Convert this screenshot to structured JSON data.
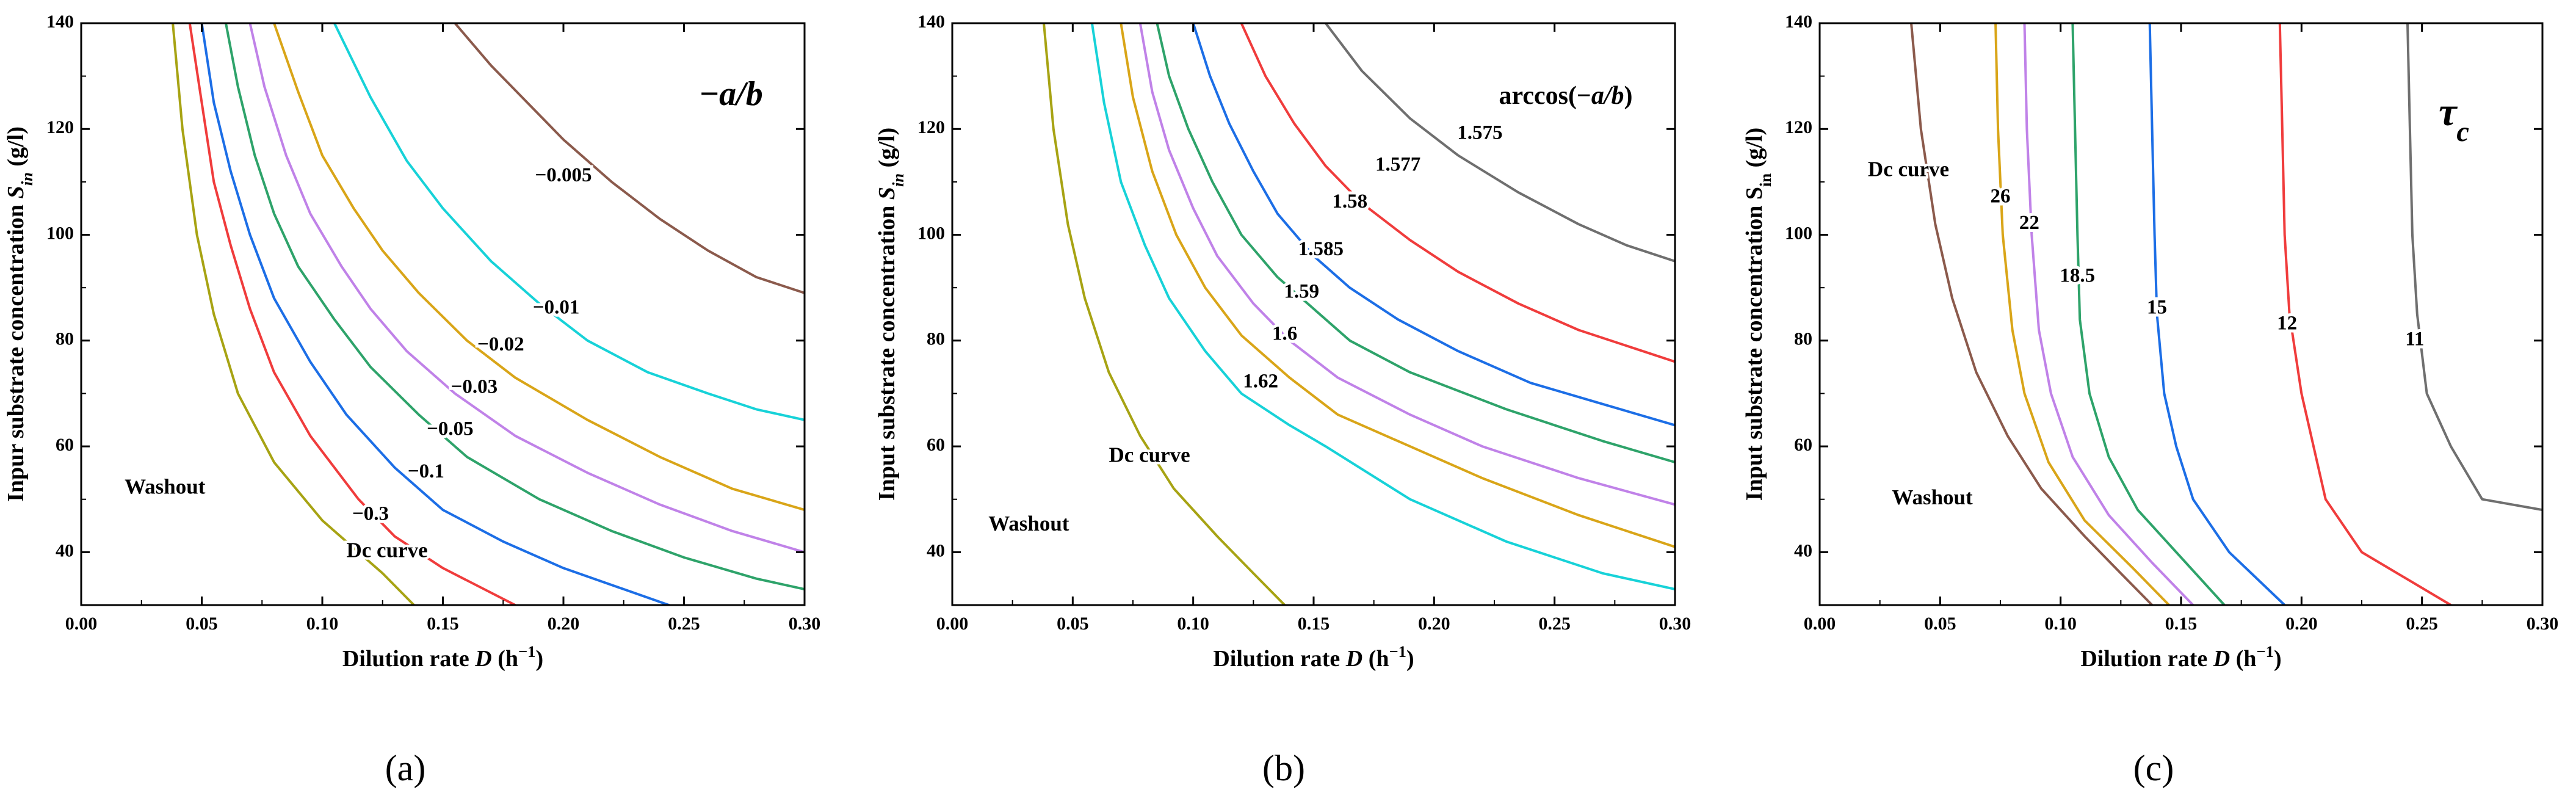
{
  "colors": {
    "olive": "#a7a313",
    "brown": "#8b5a4c",
    "red": "#f03c3c",
    "blue": "#1c6ee6",
    "green": "#2ea36a",
    "purple": "#c082e8",
    "gold": "#d9a518",
    "cyan": "#17d2d8",
    "gray": "#6f6f6f"
  },
  "chart_data": [
    {
      "type": "line",
      "subtype": "contour",
      "title": "−a/b",
      "xlabel": "Dilution rate D (h⁻¹)",
      "ylabel": "Inpur substrate concentration S_in (g/l)",
      "xlim": [
        0,
        0.3
      ],
      "ylim": [
        30,
        140
      ],
      "xticks": [
        "0.00",
        "0.05",
        "0.10",
        "0.15",
        "0.20",
        "0.25",
        "0.30"
      ],
      "yticks": [
        "40",
        "60",
        "80",
        "100",
        "120",
        "140"
      ],
      "caption": "(a)",
      "annotations": [
        {
          "text": "Washout",
          "x": 0.018,
          "y": 52
        },
        {
          "text": "Dc curve",
          "x": 0.11,
          "y": 40
        }
      ],
      "series": [
        {
          "name": "Dc curve",
          "color": "olive",
          "x": [
            0.038,
            0.042,
            0.048,
            0.055,
            0.065,
            0.08,
            0.1,
            0.125,
            0.138
          ],
          "y": [
            140,
            120,
            100,
            85,
            70,
            57,
            46,
            36,
            30
          ]
        },
        {
          "name": "−0.3",
          "color": "red",
          "x": [
            0.045,
            0.05,
            0.055,
            0.062,
            0.07,
            0.08,
            0.095,
            0.115,
            0.13,
            0.15,
            0.18
          ],
          "y": [
            140,
            125,
            110,
            98,
            86,
            74,
            62,
            50,
            43,
            37,
            30
          ]
        },
        {
          "name": "−0.1",
          "color": "blue",
          "x": [
            0.05,
            0.055,
            0.062,
            0.07,
            0.08,
            0.095,
            0.11,
            0.13,
            0.15,
            0.175,
            0.2,
            0.225,
            0.25
          ],
          "y": [
            140,
            125,
            112,
            100,
            88,
            76,
            66,
            56,
            48,
            42,
            37,
            33,
            29
          ]
        },
        {
          "name": "−0.05",
          "color": "green",
          "x": [
            0.06,
            0.065,
            0.072,
            0.08,
            0.09,
            0.105,
            0.12,
            0.14,
            0.16,
            0.19,
            0.22,
            0.25,
            0.28,
            0.3
          ],
          "y": [
            140,
            128,
            115,
            104,
            94,
            84,
            75,
            66,
            58,
            50,
            44,
            39,
            35,
            33
          ]
        },
        {
          "name": "−0.03",
          "color": "purple",
          "x": [
            0.07,
            0.076,
            0.085,
            0.095,
            0.108,
            0.12,
            0.135,
            0.155,
            0.18,
            0.21,
            0.24,
            0.27,
            0.3
          ],
          "y": [
            140,
            128,
            115,
            104,
            94,
            86,
            78,
            70,
            62,
            55,
            49,
            44,
            40
          ]
        },
        {
          "name": "−0.02",
          "color": "gold",
          "x": [
            0.08,
            0.09,
            0.1,
            0.113,
            0.125,
            0.14,
            0.16,
            0.18,
            0.21,
            0.24,
            0.27,
            0.3
          ],
          "y": [
            140,
            127,
            115,
            105,
            97,
            89,
            80,
            73,
            65,
            58,
            52,
            48
          ]
        },
        {
          "name": "−0.01",
          "color": "cyan",
          "x": [
            0.105,
            0.12,
            0.135,
            0.15,
            0.17,
            0.19,
            0.21,
            0.235,
            0.26,
            0.28,
            0.3
          ],
          "y": [
            140,
            126,
            114,
            105,
            95,
            87,
            80,
            74,
            70,
            67,
            65
          ]
        },
        {
          "name": "−0.005",
          "color": "brown",
          "x": [
            0.155,
            0.17,
            0.185,
            0.2,
            0.22,
            0.24,
            0.26,
            0.28,
            0.3
          ],
          "y": [
            140,
            132,
            125,
            118,
            110,
            103,
            97,
            92,
            89
          ]
        }
      ],
      "contour_labels": [
        {
          "text": "−0.3",
          "x": 0.12,
          "y": 47
        },
        {
          "text": "−0.1",
          "x": 0.143,
          "y": 55
        },
        {
          "text": "−0.05",
          "x": 0.153,
          "y": 63
        },
        {
          "text": "−0.03",
          "x": 0.163,
          "y": 71
        },
        {
          "text": "−0.02",
          "x": 0.174,
          "y": 79
        },
        {
          "text": "−0.01",
          "x": 0.197,
          "y": 86
        },
        {
          "text": "−0.005",
          "x": 0.2,
          "y": 111
        }
      ]
    },
    {
      "type": "line",
      "subtype": "contour",
      "title": "arccos(−a/b)",
      "xlabel": "Dilution rate D (h⁻¹)",
      "ylabel": "Input substrate concentration S_in (g/l)",
      "xlim": [
        0,
        0.3
      ],
      "ylim": [
        30,
        140
      ],
      "xticks": [
        "0.00",
        "0.05",
        "0.10",
        "0.15",
        "0.20",
        "0.25",
        "0.30"
      ],
      "yticks": [
        "40",
        "60",
        "80",
        "100",
        "120",
        "140"
      ],
      "caption": "(b)",
      "annotations": [
        {
          "text": "Washout",
          "x": 0.015,
          "y": 45
        },
        {
          "text": "Dc curve",
          "x": 0.065,
          "y": 58
        }
      ],
      "series": [
        {
          "name": "Dc curve",
          "color": "olive",
          "x": [
            0.038,
            0.042,
            0.048,
            0.055,
            0.065,
            0.078,
            0.092,
            0.11,
            0.125,
            0.138
          ],
          "y": [
            140,
            120,
            102,
            88,
            74,
            62,
            52,
            43,
            36,
            30
          ]
        },
        {
          "name": "1.62",
          "color": "cyan",
          "x": [
            0.058,
            0.063,
            0.07,
            0.08,
            0.09,
            0.105,
            0.12,
            0.14,
            0.155,
            0.19,
            0.23,
            0.27,
            0.3
          ],
          "y": [
            140,
            125,
            110,
            98,
            88,
            78,
            70,
            64,
            60,
            50,
            42,
            36,
            33
          ]
        },
        {
          "name": "1.6",
          "color": "gold",
          "x": [
            0.07,
            0.075,
            0.083,
            0.093,
            0.105,
            0.12,
            0.14,
            0.16,
            0.19,
            0.22,
            0.26,
            0.3
          ],
          "y": [
            140,
            126,
            112,
            100,
            90,
            81,
            73,
            66,
            60,
            54,
            47,
            41
          ]
        },
        {
          "name": "1.59",
          "color": "purple",
          "x": [
            0.078,
            0.083,
            0.09,
            0.1,
            0.11,
            0.125,
            0.14,
            0.16,
            0.19,
            0.22,
            0.26,
            0.3
          ],
          "y": [
            140,
            127,
            116,
            105,
            96,
            87,
            80,
            73,
            66,
            60,
            54,
            49
          ]
        },
        {
          "name": "1.585",
          "color": "green",
          "x": [
            0.085,
            0.09,
            0.098,
            0.108,
            0.12,
            0.135,
            0.15,
            0.165,
            0.19,
            0.23,
            0.27,
            0.3
          ],
          "y": [
            140,
            130,
            120,
            110,
            100,
            92,
            86,
            80,
            74,
            67,
            61,
            57
          ]
        },
        {
          "name": "1.58",
          "color": "blue",
          "x": [
            0.1,
            0.107,
            0.115,
            0.125,
            0.135,
            0.15,
            0.165,
            0.185,
            0.21,
            0.24,
            0.27,
            0.3
          ],
          "y": [
            140,
            130,
            121,
            112,
            104,
            96,
            90,
            84,
            78,
            72,
            68,
            64
          ]
        },
        {
          "name": "1.577",
          "color": "red",
          "x": [
            0.12,
            0.13,
            0.142,
            0.155,
            0.17,
            0.19,
            0.21,
            0.235,
            0.26,
            0.28,
            0.3
          ],
          "y": [
            140,
            130,
            121,
            113,
            106,
            99,
            93,
            87,
            82,
            79,
            76
          ]
        },
        {
          "name": "1.575",
          "color": "gray",
          "x": [
            0.155,
            0.17,
            0.19,
            0.21,
            0.235,
            0.26,
            0.28,
            0.3
          ],
          "y": [
            140,
            131,
            122,
            115,
            108,
            102,
            98,
            95
          ]
        }
      ],
      "contour_labels": [
        {
          "text": "1.62",
          "x": 0.128,
          "y": 72
        },
        {
          "text": "1.6",
          "x": 0.138,
          "y": 81
        },
        {
          "text": "1.59",
          "x": 0.145,
          "y": 89
        },
        {
          "text": "1.585",
          "x": 0.153,
          "y": 97
        },
        {
          "text": "1.58",
          "x": 0.165,
          "y": 106
        },
        {
          "text": "1.577",
          "x": 0.185,
          "y": 113
        },
        {
          "text": "1.575",
          "x": 0.219,
          "y": 119
        }
      ]
    },
    {
      "type": "line",
      "subtype": "contour",
      "title": "τc",
      "xlabel": "Dilution rate D (h⁻¹)",
      "ylabel": "Input substrate concentration S_in (g/l)",
      "xlim": [
        0,
        0.3
      ],
      "ylim": [
        30,
        140
      ],
      "xticks": [
        "0.00",
        "0.05",
        "0.10",
        "0.15",
        "0.20",
        "0.25",
        "0.30"
      ],
      "yticks": [
        "40",
        "60",
        "80",
        "100",
        "120",
        "140"
      ],
      "caption": "(c)",
      "annotations": [
        {
          "text": "Washout",
          "x": 0.03,
          "y": 50
        },
        {
          "text": "Dc curve",
          "x": 0.02,
          "y": 112
        }
      ],
      "series": [
        {
          "name": "Dc curve",
          "color": "brown",
          "x": [
            0.038,
            0.042,
            0.048,
            0.055,
            0.065,
            0.078,
            0.092,
            0.11,
            0.125,
            0.138
          ],
          "y": [
            140,
            120,
            102,
            88,
            74,
            62,
            52,
            43,
            36,
            30
          ]
        },
        {
          "name": "26",
          "color": "gold",
          "x": [
            0.073,
            0.074,
            0.076,
            0.08,
            0.085,
            0.095,
            0.11,
            0.13,
            0.145
          ],
          "y": [
            140,
            120,
            100,
            82,
            70,
            57,
            46,
            37,
            30
          ]
        },
        {
          "name": "22",
          "color": "purple",
          "x": [
            0.085,
            0.086,
            0.088,
            0.091,
            0.096,
            0.105,
            0.12,
            0.138,
            0.155
          ],
          "y": [
            140,
            120,
            100,
            82,
            70,
            58,
            47,
            38,
            30
          ]
        },
        {
          "name": "18.5",
          "color": "green",
          "x": [
            0.105,
            0.106,
            0.107,
            0.108,
            0.112,
            0.12,
            0.132,
            0.15,
            0.168
          ],
          "y": [
            140,
            120,
            100,
            84,
            70,
            58,
            48,
            39,
            30
          ]
        },
        {
          "name": "15",
          "color": "blue",
          "x": [
            0.137,
            0.138,
            0.139,
            0.14,
            0.143,
            0.148,
            0.155,
            0.17,
            0.193
          ],
          "y": [
            140,
            120,
            100,
            85,
            70,
            60,
            50,
            40,
            30
          ]
        },
        {
          "name": "12",
          "color": "red",
          "x": [
            0.191,
            0.192,
            0.193,
            0.195,
            0.2,
            0.21,
            0.225,
            0.262
          ],
          "y": [
            140,
            120,
            100,
            85,
            70,
            50,
            40,
            30
          ]
        },
        {
          "name": "11",
          "color": "gray",
          "x": [
            0.244,
            0.245,
            0.246,
            0.248,
            0.252,
            0.262,
            0.275,
            0.3
          ],
          "y": [
            140,
            120,
            100,
            85,
            70,
            60,
            50,
            48
          ]
        }
      ],
      "contour_labels": [
        {
          "text": "26",
          "x": 0.075,
          "y": 107
        },
        {
          "text": "22",
          "x": 0.087,
          "y": 102
        },
        {
          "text": "18.5",
          "x": 0.107,
          "y": 92
        },
        {
          "text": "15",
          "x": 0.14,
          "y": 86
        },
        {
          "text": "12",
          "x": 0.194,
          "y": 83
        },
        {
          "text": "11",
          "x": 0.247,
          "y": 80
        }
      ]
    }
  ]
}
